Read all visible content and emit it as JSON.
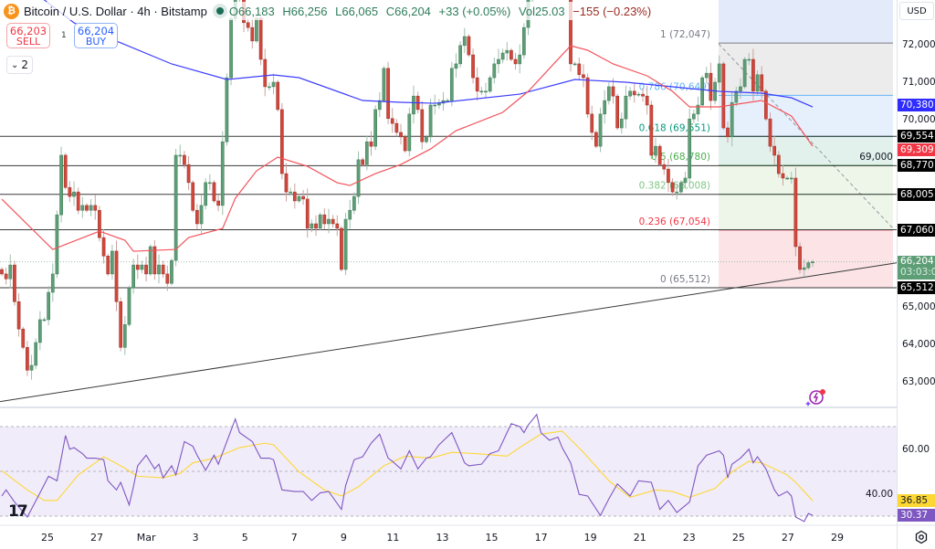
{
  "header": {
    "symbol_title": "Bitcoin / U.S. Dollar · 4h · Bitstamp",
    "btc_icon": "₿",
    "open": "O66,183",
    "high": "H66,256",
    "low": "L66,065",
    "close": "C66,204",
    "change": "+33 (+0.05%)",
    "volume_label": "Vol",
    "volume": "25.03",
    "volume_change": "−155 (−0.23%)"
  },
  "trade": {
    "sell_price": "66,203",
    "sell_label": "SELL",
    "spread": "1",
    "buy_price": "66,204",
    "buy_label": "BUY"
  },
  "collapse": {
    "count": "2"
  },
  "axis": {
    "currency": "USD",
    "price_ticks": [
      "72,000",
      "71,000",
      "70,000",
      "69,000",
      "65,000",
      "64,000",
      "63,000"
    ],
    "price_tick_values": [
      72000,
      71000,
      70000,
      69000,
      65000,
      64000,
      63000
    ],
    "badges": [
      {
        "text": "70,380",
        "value": 70380,
        "color": "#2f2cff"
      },
      {
        "text": "69,554",
        "value": 69554,
        "color": "#000000"
      },
      {
        "text": "69,309",
        "value": 69309,
        "color": "#f23645"
      },
      {
        "text": "68,770",
        "value": 68770,
        "color": "#000000"
      },
      {
        "text": "68,005",
        "value": 68005,
        "color": "#000000"
      },
      {
        "text": "67,060",
        "value": 67060,
        "color": "#000000"
      },
      {
        "text": "66,204",
        "value": 66204,
        "color": "#5e9e77",
        "countdown": "03:03:0"
      },
      {
        "text": "65,512",
        "value": 65512,
        "color": "#000000"
      }
    ],
    "rsi_ticks": [
      "60.00",
      "40.00"
    ],
    "rsi_tick_values": [
      60,
      40
    ],
    "rsi_badges": [
      {
        "text": "36.85",
        "value": 36.85,
        "color": "#fdd835",
        "textColor": "#131722"
      },
      {
        "text": "30.37",
        "value": 30.37,
        "color": "#7e57c2",
        "textColor": "#ffffff"
      }
    ],
    "time_ticks": [
      "25",
      "27",
      "Mar",
      "3",
      "5",
      "7",
      "9",
      "11",
      "13",
      "15",
      "17",
      "19",
      "21",
      "23",
      "25",
      "27",
      "29"
    ]
  },
  "logo": "TV",
  "chart_data": {
    "type": "candlestick",
    "timeframe": "4h",
    "price_range": [
      62200,
      73200
    ],
    "last_candle": {
      "open": 66183,
      "high": 66256,
      "low": 66065,
      "close": 66204
    },
    "closes": [
      65880,
      65750,
      66120,
      65140,
      64410,
      63920,
      63310,
      63440,
      64050,
      64660,
      64660,
      65390,
      65880,
      67460,
      69050,
      68190,
      67950,
      68070,
      67580,
      67710,
      67580,
      67710,
      67580,
      66850,
      66360,
      65880,
      66490,
      65140,
      63920,
      64530,
      65510,
      66120,
      66000,
      66120,
      65880,
      66610,
      65880,
      66120,
      65880,
      65630,
      66240,
      69050,
      69050,
      68800,
      68320,
      67580,
      67220,
      67710,
      68320,
      68320,
      67830,
      67710,
      69410,
      71120,
      72700,
      73300,
      73500,
      72590,
      72460,
      72100,
      72710,
      71610,
      70880,
      70880,
      71000,
      70270,
      68560,
      68070,
      68070,
      67830,
      67950,
      67880,
      67100,
      67220,
      67100,
      67460,
      67220,
      67340,
      67220,
      67100,
      66000,
      67340,
      67580,
      67950,
      68930,
      68800,
      69410,
      69290,
      70270,
      70510,
      71370,
      70030,
      69900,
      69660,
      69540,
      69170,
      70150,
      70630,
      70270,
      69410,
      69540,
      70390,
      70390,
      70440,
      70510,
      70510,
      71370,
      71490,
      71980,
      72220,
      71730,
      71120,
      70760,
      70760,
      70760,
      71120,
      71490,
      71610,
      71780,
      71850,
      71610,
      71490,
      71730,
      72460,
      73200,
      73500,
      73700,
      73900,
      74000,
      73800,
      73900,
      74100,
      73700,
      73400,
      71490,
      71490,
      71200,
      71120,
      70150,
      69660,
      69290,
      70150,
      70510,
      70880,
      70630,
      69780,
      70020,
      70630,
      70760,
      70660,
      70680,
      70630,
      70390,
      69050,
      69290,
      68800,
      68680,
      68320,
      68070,
      68070,
      68320,
      68440,
      70020,
      70150,
      70390,
      71120,
      71240,
      70510,
      71000,
      71490,
      69780,
      69540,
      70460,
      70760,
      70880,
      71610,
      71610,
      70760,
      71200,
      70760,
      70020,
      69290,
      69050,
      68560,
      68440,
      68440,
      68440,
      66610,
      66000,
      66046,
      66183,
      66204
    ],
    "moving_averages": [
      {
        "color": "#3d3dff",
        "last": 70380,
        "points": [
          [
            0,
            74200
          ],
          [
            10,
            73196
          ],
          [
            17,
            72586
          ],
          [
            27,
            72098
          ],
          [
            40,
            71488
          ],
          [
            53,
            71073
          ],
          [
            64,
            71195
          ],
          [
            70,
            71122
          ],
          [
            85,
            70512
          ],
          [
            94,
            70463
          ],
          [
            102,
            70438
          ],
          [
            122,
            70682
          ],
          [
            135,
            71073
          ],
          [
            147,
            71000
          ],
          [
            158,
            70878
          ],
          [
            169,
            70756
          ],
          [
            179,
            70707
          ],
          [
            186,
            70585
          ],
          [
            191,
            70341
          ]
        ]
      },
      {
        "color": "#f2545b",
        "last": 69309,
        "points": [
          [
            0,
            67876
          ],
          [
            12,
            66535
          ],
          [
            23,
            67022
          ],
          [
            29,
            66779
          ],
          [
            31,
            66486
          ],
          [
            41,
            66535
          ],
          [
            44,
            66852
          ],
          [
            52,
            67096
          ],
          [
            55,
            67900
          ],
          [
            60,
            68633
          ],
          [
            65,
            68999
          ],
          [
            72,
            68755
          ],
          [
            79,
            68316
          ],
          [
            82,
            68243
          ],
          [
            88,
            68560
          ],
          [
            94,
            68804
          ],
          [
            101,
            69218
          ],
          [
            107,
            69706
          ],
          [
            118,
            70195
          ],
          [
            124,
            70756
          ],
          [
            134,
            71976
          ],
          [
            138,
            71854
          ],
          [
            144,
            71488
          ],
          [
            152,
            71171
          ],
          [
            158,
            70756
          ],
          [
            162,
            70341
          ],
          [
            169,
            70341
          ],
          [
            179,
            70512
          ],
          [
            186,
            70098
          ],
          [
            191,
            69292
          ]
        ]
      }
    ],
    "horizontal_levels": [
      69554,
      68770,
      68005,
      67060,
      65512
    ],
    "trendline": [
      [
        0,
        62480
      ],
      [
        191,
        65830
      ]
    ],
    "fibonacci": {
      "levels": [
        {
          "ratio": "1",
          "value": 72047,
          "label": "1 (72,047)",
          "color": "#787b86",
          "fill": "#ececec"
        },
        {
          "ratio": "0.786",
          "value": 70649,
          "label": "0.786 (70,649)",
          "color": "#64b5f6",
          "fill": "#e6f0fc"
        },
        {
          "ratio": "0.618",
          "value": 69551,
          "label": "0.618 (69,551)",
          "color": "#089981",
          "fill": "#e3f1ec"
        },
        {
          "ratio": "0.5",
          "value": 68780,
          "label": "0.5 (68,780)",
          "color": "#4caf50",
          "fill": "#eef6ea"
        },
        {
          "ratio": "0.382",
          "value": 68008,
          "label": "0.382 (68,008)",
          "color": "#81c784",
          "fill": "#eef6ea"
        },
        {
          "ratio": "0.236",
          "value": 67054,
          "label": "0.236 (67,054)",
          "color": "#f23645",
          "fill": "#fbe3e6"
        },
        {
          "ratio": "0",
          "value": 65512,
          "label": "0 (65,512)",
          "color": "#787b86",
          "fill": null
        }
      ],
      "top_fill": "#e3ebfa"
    },
    "rsi": {
      "bands": [
        70,
        50,
        30
      ],
      "last": 30.37,
      "ma_last": 36.85,
      "color": "#7e57c2",
      "ma_color": "#fdd835",
      "points": [
        [
          0,
          39
        ],
        [
          1,
          41.7
        ],
        [
          3,
          36.3
        ],
        [
          6,
          29.6
        ],
        [
          9,
          40.4
        ],
        [
          11,
          47.8
        ],
        [
          13,
          45.8
        ],
        [
          15,
          66
        ],
        [
          16,
          59.9
        ],
        [
          17,
          60.6
        ],
        [
          19,
          57.9
        ],
        [
          20,
          55.9
        ],
        [
          22,
          55.9
        ],
        [
          24,
          55.2
        ],
        [
          25,
          45.8
        ],
        [
          27,
          41.7
        ],
        [
          28,
          45.1
        ],
        [
          30,
          35
        ],
        [
          31,
          43.1
        ],
        [
          32,
          52.5
        ],
        [
          34,
          57.2
        ],
        [
          36,
          51.1
        ],
        [
          37,
          53.2
        ],
        [
          38,
          47.1
        ],
        [
          40,
          52.5
        ],
        [
          41,
          48.4
        ],
        [
          43,
          63.3
        ],
        [
          45,
          61.2
        ],
        [
          46,
          57.2
        ],
        [
          48,
          50.5
        ],
        [
          50,
          57.2
        ],
        [
          51,
          53.2
        ],
        [
          53,
          63.3
        ],
        [
          55,
          73.4
        ],
        [
          56,
          67.3
        ],
        [
          58,
          64.6
        ],
        [
          59,
          63.3
        ],
        [
          61,
          55.9
        ],
        [
          63,
          55.9
        ],
        [
          64,
          55.2
        ],
        [
          66,
          41.7
        ],
        [
          69,
          41
        ],
        [
          71,
          41
        ],
        [
          73,
          37
        ],
        [
          75,
          40.4
        ],
        [
          77,
          41
        ],
        [
          80,
          33
        ],
        [
          81,
          43.7
        ],
        [
          83,
          55.2
        ],
        [
          85,
          56.5
        ],
        [
          87,
          62.6
        ],
        [
          89,
          66.6
        ],
        [
          91,
          55.9
        ],
        [
          92,
          54.5
        ],
        [
          94,
          51.1
        ],
        [
          96,
          59.2
        ],
        [
          98,
          51.1
        ],
        [
          100,
          55.9
        ],
        [
          101,
          56.5
        ],
        [
          103,
          61.9
        ],
        [
          106,
          67.3
        ],
        [
          108,
          58.5
        ],
        [
          109,
          53.8
        ],
        [
          110,
          52.5
        ],
        [
          113,
          53.2
        ],
        [
          115,
          57.9
        ],
        [
          117,
          59.2
        ],
        [
          119,
          67.3
        ],
        [
          120,
          71.3
        ],
        [
          122,
          70
        ],
        [
          123,
          67.3
        ],
        [
          124,
          70.7
        ],
        [
          126,
          75.4
        ],
        [
          127,
          67.3
        ],
        [
          129,
          63.9
        ],
        [
          131,
          65.3
        ],
        [
          132,
          60.6
        ],
        [
          134,
          53.8
        ],
        [
          136,
          39.7
        ],
        [
          138,
          39
        ],
        [
          141,
          30.3
        ],
        [
          143,
          37.7
        ],
        [
          145,
          44.4
        ],
        [
          148,
          39
        ],
        [
          150,
          45.8
        ],
        [
          153,
          45.1
        ],
        [
          155,
          33
        ],
        [
          157,
          37
        ],
        [
          159,
          31.6
        ],
        [
          162,
          36.3
        ],
        [
          164,
          52.5
        ],
        [
          166,
          57.2
        ],
        [
          169,
          59.2
        ],
        [
          170,
          57.2
        ],
        [
          171,
          47.1
        ],
        [
          172,
          53.2
        ],
        [
          174,
          55.9
        ],
        [
          176,
          59.9
        ],
        [
          177,
          53.8
        ],
        [
          178,
          56.5
        ],
        [
          180,
          51.1
        ],
        [
          182,
          41.7
        ],
        [
          183,
          39
        ],
        [
          185,
          41
        ],
        [
          186,
          39
        ],
        [
          187,
          29.6
        ],
        [
          189,
          27.6
        ],
        [
          190,
          31.2
        ],
        [
          191,
          30.37
        ]
      ],
      "ma_points": [
        [
          0,
          50.3
        ],
        [
          6,
          41.7
        ],
        [
          10,
          37
        ],
        [
          13,
          37
        ],
        [
          18,
          48.4
        ],
        [
          24,
          56.5
        ],
        [
          28,
          52.5
        ],
        [
          32,
          47.8
        ],
        [
          38,
          47.1
        ],
        [
          42,
          49.1
        ],
        [
          45,
          53.8
        ],
        [
          50,
          55.9
        ],
        [
          56,
          60.6
        ],
        [
          62,
          62.6
        ],
        [
          64,
          61.9
        ],
        [
          70,
          49.8
        ],
        [
          76,
          41.7
        ],
        [
          80,
          39
        ],
        [
          84,
          43.1
        ],
        [
          90,
          52.5
        ],
        [
          95,
          56.8
        ],
        [
          101,
          55.9
        ],
        [
          106,
          58.5
        ],
        [
          112,
          57.9
        ],
        [
          119,
          56.8
        ],
        [
          123,
          61.9
        ],
        [
          127,
          66.6
        ],
        [
          132,
          68
        ],
        [
          137,
          58.5
        ],
        [
          143,
          45.8
        ],
        [
          148,
          38.4
        ],
        [
          154,
          41.7
        ],
        [
          158,
          41
        ],
        [
          162,
          38.4
        ],
        [
          168,
          42.4
        ],
        [
          172,
          49.8
        ],
        [
          176,
          54.5
        ],
        [
          179,
          53.8
        ],
        [
          185,
          48.4
        ],
        [
          187,
          45.1
        ],
        [
          191,
          36.85
        ]
      ]
    },
    "colors": {
      "up": "#5e9e77",
      "down": "#d1473c"
    }
  }
}
